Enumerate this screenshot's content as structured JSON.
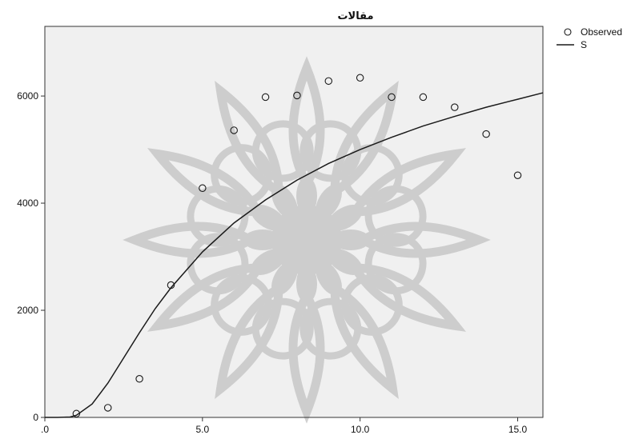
{
  "chart_data": {
    "type": "scatter",
    "title": "مقالات",
    "xlabel": "",
    "ylabel": "",
    "xlim": [
      0,
      15.8
    ],
    "ylim": [
      0,
      7300
    ],
    "x_ticks": [
      0,
      5,
      10,
      15
    ],
    "x_tick_labels": [
      ".0",
      "5.0",
      "10.0",
      "15.0"
    ],
    "y_ticks": [
      0,
      2000,
      4000,
      6000
    ],
    "y_tick_labels": [
      "0",
      "2000",
      "4000",
      "6000"
    ],
    "grid": false,
    "legend_position": "top-right",
    "background_watermark": "ornamental-star-rosette",
    "colors": {
      "plot_background": "#f0f0f0",
      "watermark": "#c8c8c8",
      "series_stroke": "#1a1a1a"
    },
    "series": [
      {
        "name": "Observed",
        "kind": "markers",
        "marker": "open-circle",
        "x": [
          1,
          2,
          3,
          4,
          5,
          6,
          7,
          8,
          9,
          10,
          11,
          12,
          13,
          14,
          15
        ],
        "y": [
          70,
          180,
          720,
          2470,
          4280,
          5360,
          5980,
          6010,
          6280,
          6340,
          5980,
          5980,
          5790,
          5290,
          4520
        ]
      },
      {
        "name": "S",
        "kind": "line",
        "model": "S-curve",
        "x": [
          0.4,
          0.8,
          1.0,
          1.5,
          2.0,
          2.5,
          3.0,
          3.5,
          4.0,
          5.0,
          6.0,
          7.0,
          8.0,
          9.0,
          10.0,
          11.0,
          12.0,
          13.0,
          14.0,
          15.0,
          15.8
        ],
        "y": [
          0,
          8,
          40,
          250,
          640,
          1110,
          1580,
          2030,
          2420,
          3090,
          3630,
          4060,
          4430,
          4740,
          5000,
          5230,
          5440,
          5620,
          5790,
          5940,
          6060
        ]
      }
    ]
  }
}
